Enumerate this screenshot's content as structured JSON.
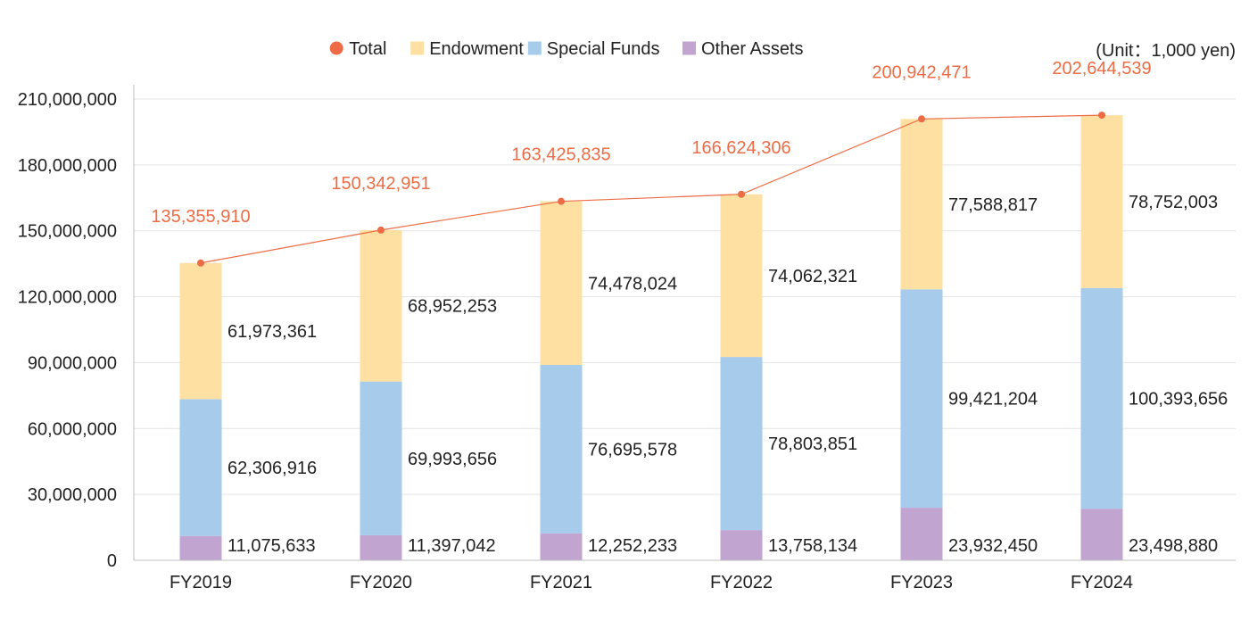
{
  "chart_data": {
    "type": "bar",
    "stacked": true,
    "unit_note": "(Unit：1,000 yen)",
    "categories": [
      "FY2019",
      "FY2020",
      "FY2021",
      "FY2022",
      "FY2023",
      "FY2024"
    ],
    "ylim": [
      0,
      210000000
    ],
    "yticks": [
      0,
      30000000,
      60000000,
      90000000,
      120000000,
      150000000,
      180000000,
      210000000
    ],
    "ytick_labels": [
      "0",
      "30,000,000",
      "60,000,000",
      "90,000,000",
      "120,000,000",
      "150,000,000",
      "180,000,000",
      "210,000,000"
    ],
    "grid": true,
    "legend_position": "top",
    "legend": [
      {
        "name": "Total",
        "color": "#ED6C45",
        "marker": "circle"
      },
      {
        "name": "Endowment",
        "color": "#FEE0A3",
        "marker": "square"
      },
      {
        "name": "Special Funds",
        "color": "#A6CBEB",
        "marker": "square"
      },
      {
        "name": "Other Assets",
        "color": "#C1A5D0",
        "marker": "square"
      }
    ],
    "series": [
      {
        "name": "Other Assets",
        "color": "#C1A5D0",
        "values": [
          11075633,
          11397042,
          12252233,
          13758134,
          23932450,
          23498880
        ],
        "labels": [
          "11,075,633",
          "11,397,042",
          "12,252,233",
          "13,758,134",
          "23,932,450",
          "23,498,880"
        ]
      },
      {
        "name": "Special Funds",
        "color": "#A6CBEB",
        "values": [
          62306916,
          69993656,
          76695578,
          78803851,
          99421204,
          100393656
        ],
        "labels": [
          "62,306,916",
          "69,993,656",
          "76,695,578",
          "78,803,851",
          "99,421,204",
          "100,393,656"
        ]
      },
      {
        "name": "Endowment",
        "color": "#FEE0A3",
        "values": [
          61973361,
          68952253,
          74478024,
          74062321,
          77588817,
          78752003
        ],
        "labels": [
          "61,973,361",
          "68,952,253",
          "74,478,024",
          "74,062,321",
          "77,588,817",
          "78,752,003"
        ]
      }
    ],
    "total": {
      "name": "Total",
      "type": "line",
      "color": "#ED6C45",
      "values": [
        135355910,
        150342951,
        163425835,
        166624306,
        200942471,
        202644539
      ],
      "labels": [
        "135,355,910",
        "150,342,951",
        "163,425,835",
        "166,624,306",
        "200,942,471",
        "202,644,539"
      ]
    }
  }
}
